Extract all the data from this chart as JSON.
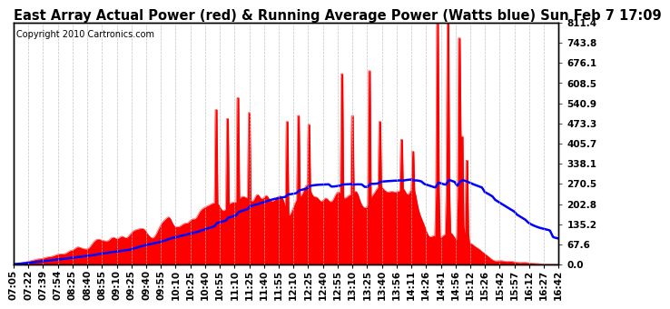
{
  "title": "East Array Actual Power (red) & Running Average Power (Watts blue) Sun Feb 7 17:09",
  "copyright": "Copyright 2010 Cartronics.com",
  "ylabel_right_vals": [
    0.0,
    67.6,
    135.2,
    202.8,
    270.5,
    338.1,
    405.7,
    473.3,
    540.9,
    608.5,
    676.1,
    743.8,
    811.4
  ],
  "ymax": 811.4,
  "ymin": 0.0,
  "xtick_labels": [
    "07:05",
    "07:22",
    "07:39",
    "07:54",
    "08:25",
    "08:40",
    "08:55",
    "09:10",
    "09:25",
    "09:40",
    "09:55",
    "10:10",
    "10:25",
    "10:40",
    "10:55",
    "11:10",
    "11:25",
    "11:40",
    "11:55",
    "12:10",
    "12:25",
    "12:40",
    "12:55",
    "13:10",
    "13:25",
    "13:40",
    "13:56",
    "14:11",
    "14:26",
    "14:41",
    "14:56",
    "15:12",
    "15:26",
    "15:42",
    "15:57",
    "16:12",
    "16:27",
    "16:42"
  ],
  "background_color": "#ffffff",
  "plot_bg_color": "#ffffff",
  "actual_color": "#ff0000",
  "avg_color": "#0000ff",
  "grid_color": "#bbbbbb",
  "title_fontsize": 10.5,
  "tick_fontsize": 7.5,
  "copyright_fontsize": 7
}
